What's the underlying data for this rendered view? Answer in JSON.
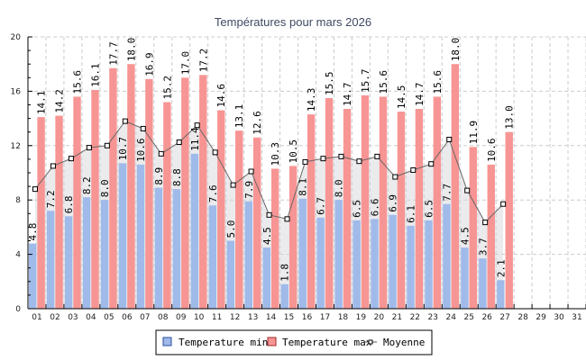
{
  "chart_data": {
    "type": "bar",
    "title": "Températures pour mars 2026",
    "xlabel": "",
    "ylabel": "",
    "ylim": [
      0,
      20
    ],
    "yticks": [
      0,
      4,
      8,
      12,
      16,
      20
    ],
    "grid": true,
    "legend_position": "bottom-center",
    "categories": [
      "01",
      "02",
      "03",
      "04",
      "05",
      "06",
      "07",
      "08",
      "09",
      "10",
      "11",
      "12",
      "13",
      "14",
      "15",
      "16",
      "17",
      "18",
      "19",
      "20",
      "21",
      "22",
      "23",
      "24",
      "25",
      "26",
      "27",
      "28",
      "29",
      "30",
      "31"
    ],
    "series": [
      {
        "name": "Temperature min",
        "type": "bar",
        "color": "#a0baea",
        "values": [
          4.8,
          7.2,
          6.8,
          8.2,
          8.0,
          10.7,
          10.6,
          8.9,
          8.8,
          11.4,
          7.6,
          5.0,
          7.9,
          4.5,
          1.8,
          8.1,
          6.7,
          8.0,
          6.5,
          6.6,
          6.9,
          6.1,
          6.5,
          7.7,
          4.5,
          3.7,
          2.1,
          null,
          null,
          null,
          null
        ]
      },
      {
        "name": "Temperature max",
        "type": "bar",
        "color": "#f79594",
        "values": [
          14.1,
          14.2,
          15.6,
          16.1,
          17.7,
          18.0,
          16.9,
          15.2,
          17.0,
          17.2,
          14.6,
          13.1,
          12.6,
          10.3,
          10.5,
          14.3,
          15.5,
          14.7,
          15.7,
          15.6,
          14.5,
          14.7,
          15.6,
          18.0,
          11.9,
          10.6,
          13.0,
          null,
          null,
          null,
          null
        ]
      },
      {
        "name": "Moyenne",
        "type": "line",
        "color": "#666666",
        "values": [
          8.8,
          10.5,
          11.05,
          11.85,
          12.0,
          13.8,
          13.25,
          11.4,
          12.25,
          13.5,
          11.5,
          9.1,
          10.1,
          6.9,
          6.6,
          10.8,
          11.05,
          11.2,
          10.85,
          11.2,
          9.7,
          10.2,
          10.65,
          12.45,
          8.7,
          6.35,
          7.7,
          null,
          null,
          null,
          null
        ]
      }
    ]
  }
}
